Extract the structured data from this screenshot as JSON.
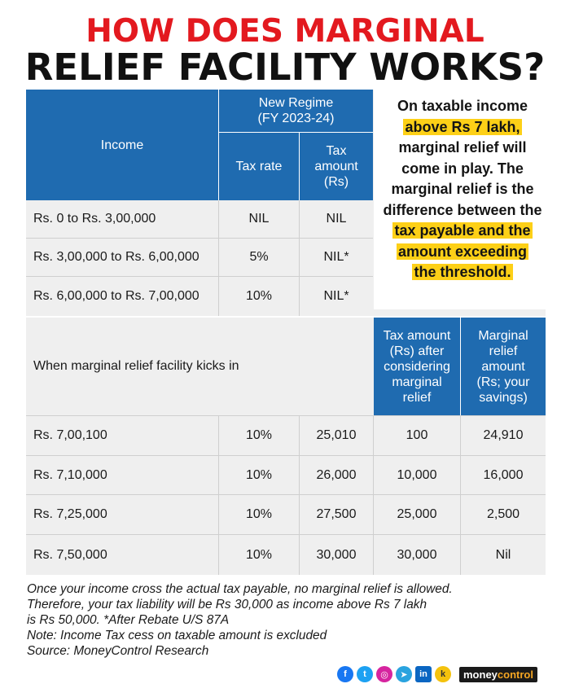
{
  "title": {
    "line1": "HOW DOES MARGINAL",
    "line2": "RELIEF FACILITY WORKS?"
  },
  "table1": {
    "income_header": "Income",
    "regime_header": "New Regime\n(FY 2023-24)",
    "tax_rate_header": "Tax rate",
    "tax_amount_header": "Tax\namount\n(Rs)",
    "rows": [
      {
        "income": "Rs. 0 to Rs. 3,00,000",
        "rate": "NIL",
        "amount": "NIL"
      },
      {
        "income": "Rs. 3,00,000 to Rs. 6,00,000",
        "rate": "5%",
        "amount": "NIL*"
      },
      {
        "income": "Rs. 6,00,000 to Rs. 7,00,000",
        "rate": "10%",
        "amount": "NIL*"
      }
    ]
  },
  "side_note": {
    "p1": "On taxable income",
    "h1": "above Rs 7 lakh,",
    "p2": "marginal relief will come in play. The marginal relief is the difference between the",
    "h2": "tax payable and the",
    "h3": "amount exceeding",
    "h4": "the threshold."
  },
  "table2": {
    "label": "When marginal relief facility kicks in",
    "col_after_header": "Tax amount\n(Rs) after\nconsidering\nmarginal\nrelief",
    "col_relief_header": "Marginal\nrelief\namount\n(Rs; your\nsavings)",
    "rows": [
      {
        "income": "Rs. 7,00,100",
        "rate": "10%",
        "amount": "25,010",
        "after": "100",
        "relief": "24,910"
      },
      {
        "income": "Rs. 7,10,000",
        "rate": "10%",
        "amount": "26,000",
        "after": "10,000",
        "relief": "16,000"
      },
      {
        "income": "Rs. 7,25,000",
        "rate": "10%",
        "amount": "27,500",
        "after": "25,000",
        "relief": "2,500"
      },
      {
        "income": "Rs. 7,50,000",
        "rate": "10%",
        "amount": "30,000",
        "after": "30,000",
        "relief": "Nil"
      }
    ]
  },
  "notes": {
    "line1": "Once your income cross the actual tax payable, no marginal relief is allowed.",
    "line2": "Therefore, your tax liability will be Rs 30,000 as income above Rs 7 lakh",
    "line3": "is Rs 50,000. *After Rebate U/S 87A",
    "line4": "Note: Income Tax cess on taxable amount is excluded",
    "line5": "Source: MoneyControl Research"
  },
  "footer": {
    "brand_a": "money",
    "brand_b": "control",
    "icons": {
      "facebook": "f",
      "twitter": "t",
      "instagram": "◎",
      "telegram": "➤",
      "linkedin": "in",
      "koo": "k"
    },
    "colors": {
      "blue": "#1f6bb0",
      "red": "#e3191f",
      "highlight": "#fdd017"
    }
  }
}
